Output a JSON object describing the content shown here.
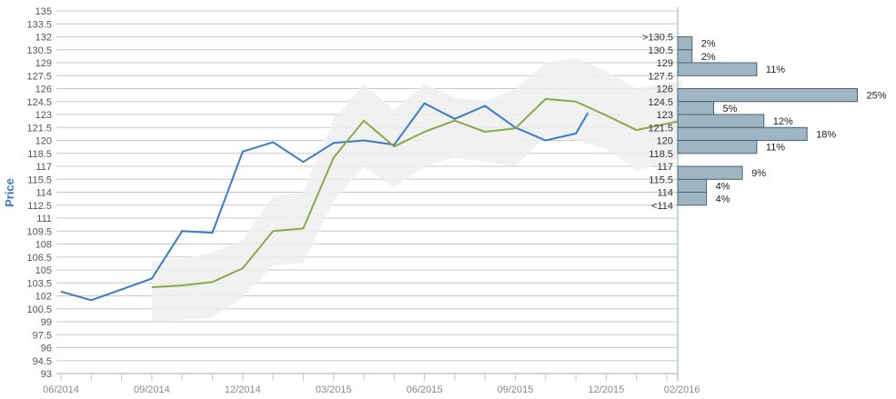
{
  "chart_data": {
    "type": "line",
    "ylabel": "Price",
    "y_ticks": [
      "135",
      "133.5",
      "132",
      "130.5",
      "129",
      "127.5",
      "126",
      "124.5",
      "123",
      "121.5",
      "120",
      "118.5",
      "117",
      "115.5",
      "114",
      "112.5",
      "111",
      "109.5",
      "108",
      "106.5",
      "105",
      "103.5",
      "102",
      "100.5",
      "99",
      "97.5",
      "96",
      "94.5",
      "93"
    ],
    "ylim": [
      93,
      135
    ],
    "x_ticks": [
      "06/2014",
      "09/2014",
      "12/2014",
      "03/2015",
      "06/2015",
      "09/2015",
      "12/2015",
      "02/2016"
    ],
    "x_tick_months": [
      0,
      3,
      6,
      9,
      12,
      15,
      18,
      20.5
    ],
    "xlim_months": [
      0,
      20.5
    ],
    "grid": true,
    "colors": {
      "actual": "#3a7bc8",
      "forecast": "#8aaa4a",
      "band": "#eeeeee",
      "bar": "#9fb5c4",
      "bar_stroke": "#4a6275",
      "axis": "#9aaabb",
      "grid": "#c8c8c8"
    },
    "series": [
      {
        "key": "actual",
        "x_months": [
          0,
          1,
          3,
          4,
          5,
          6,
          7,
          8,
          9,
          10,
          11,
          12,
          13,
          14,
          15,
          16,
          17,
          17.4
        ],
        "values": [
          102.5,
          101.5,
          104,
          109.5,
          109.3,
          118.7,
          119.8,
          117.5,
          119.7,
          120,
          119.5,
          124.3,
          122.5,
          124,
          121.5,
          120,
          120.8,
          123.2
        ]
      },
      {
        "key": "forecast",
        "x_months": [
          3,
          4,
          5,
          6,
          7,
          8,
          9,
          10,
          11,
          12,
          13,
          14,
          15,
          16,
          17,
          18,
          19,
          20.5
        ],
        "values": [
          103,
          103.2,
          103.6,
          105.2,
          109.5,
          109.8,
          118,
          122.3,
          119.3,
          121,
          122.3,
          121,
          121.4,
          124.8,
          124.5,
          122.9,
          121.2,
          122.3
        ],
        "band_upper": [
          106,
          106.3,
          107,
          108.5,
          113.5,
          114,
          122.5,
          126.5,
          123.5,
          126.5,
          125,
          124.5,
          126,
          129,
          129.5,
          128,
          126,
          127
        ],
        "band_lower": [
          99,
          99.2,
          99.5,
          101.8,
          105.5,
          105.8,
          113,
          117,
          114.5,
          117,
          118,
          117.5,
          117,
          120.5,
          120,
          119,
          116.5,
          118
        ]
      }
    ],
    "histogram": [
      {
        "label": ">130.5",
        "pct": "2%",
        "value": 2,
        "y_low": 130.5,
        "y_high": 132
      },
      {
        "label": "130.5",
        "pct": "2%",
        "value": 2,
        "y_low": 129,
        "y_high": 130.5
      },
      {
        "label": "129",
        "pct": "11%",
        "value": 11,
        "y_low": 127.5,
        "y_high": 129
      },
      {
        "label": "127.5",
        "pct": "",
        "value": 0,
        "y_low": 126,
        "y_high": 127.5
      },
      {
        "label": "126",
        "pct": "25%",
        "value": 25,
        "y_low": 124.5,
        "y_high": 126
      },
      {
        "label": "124.5",
        "pct": "5%",
        "value": 5,
        "y_low": 123,
        "y_high": 124.5
      },
      {
        "label": "123",
        "pct": "12%",
        "value": 12,
        "y_low": 121.5,
        "y_high": 123
      },
      {
        "label": "121.5",
        "pct": "18%",
        "value": 18,
        "y_low": 120,
        "y_high": 121.5
      },
      {
        "label": "120",
        "pct": "11%",
        "value": 11,
        "y_low": 118.5,
        "y_high": 120
      },
      {
        "label": "118.5",
        "pct": "",
        "value": 0,
        "y_low": 117,
        "y_high": 118.5
      },
      {
        "label": "117",
        "pct": "9%",
        "value": 9,
        "y_low": 115.5,
        "y_high": 117
      },
      {
        "label": "115.5",
        "pct": "4%",
        "value": 4,
        "y_low": 114,
        "y_high": 115.5
      },
      {
        "label": "114",
        "pct": "4%",
        "value": 4,
        "y_low": 112.5,
        "y_high": 114
      },
      {
        "label": "<114",
        "pct": "",
        "value": 0,
        "y_low": 111,
        "y_high": 112.5
      }
    ]
  }
}
